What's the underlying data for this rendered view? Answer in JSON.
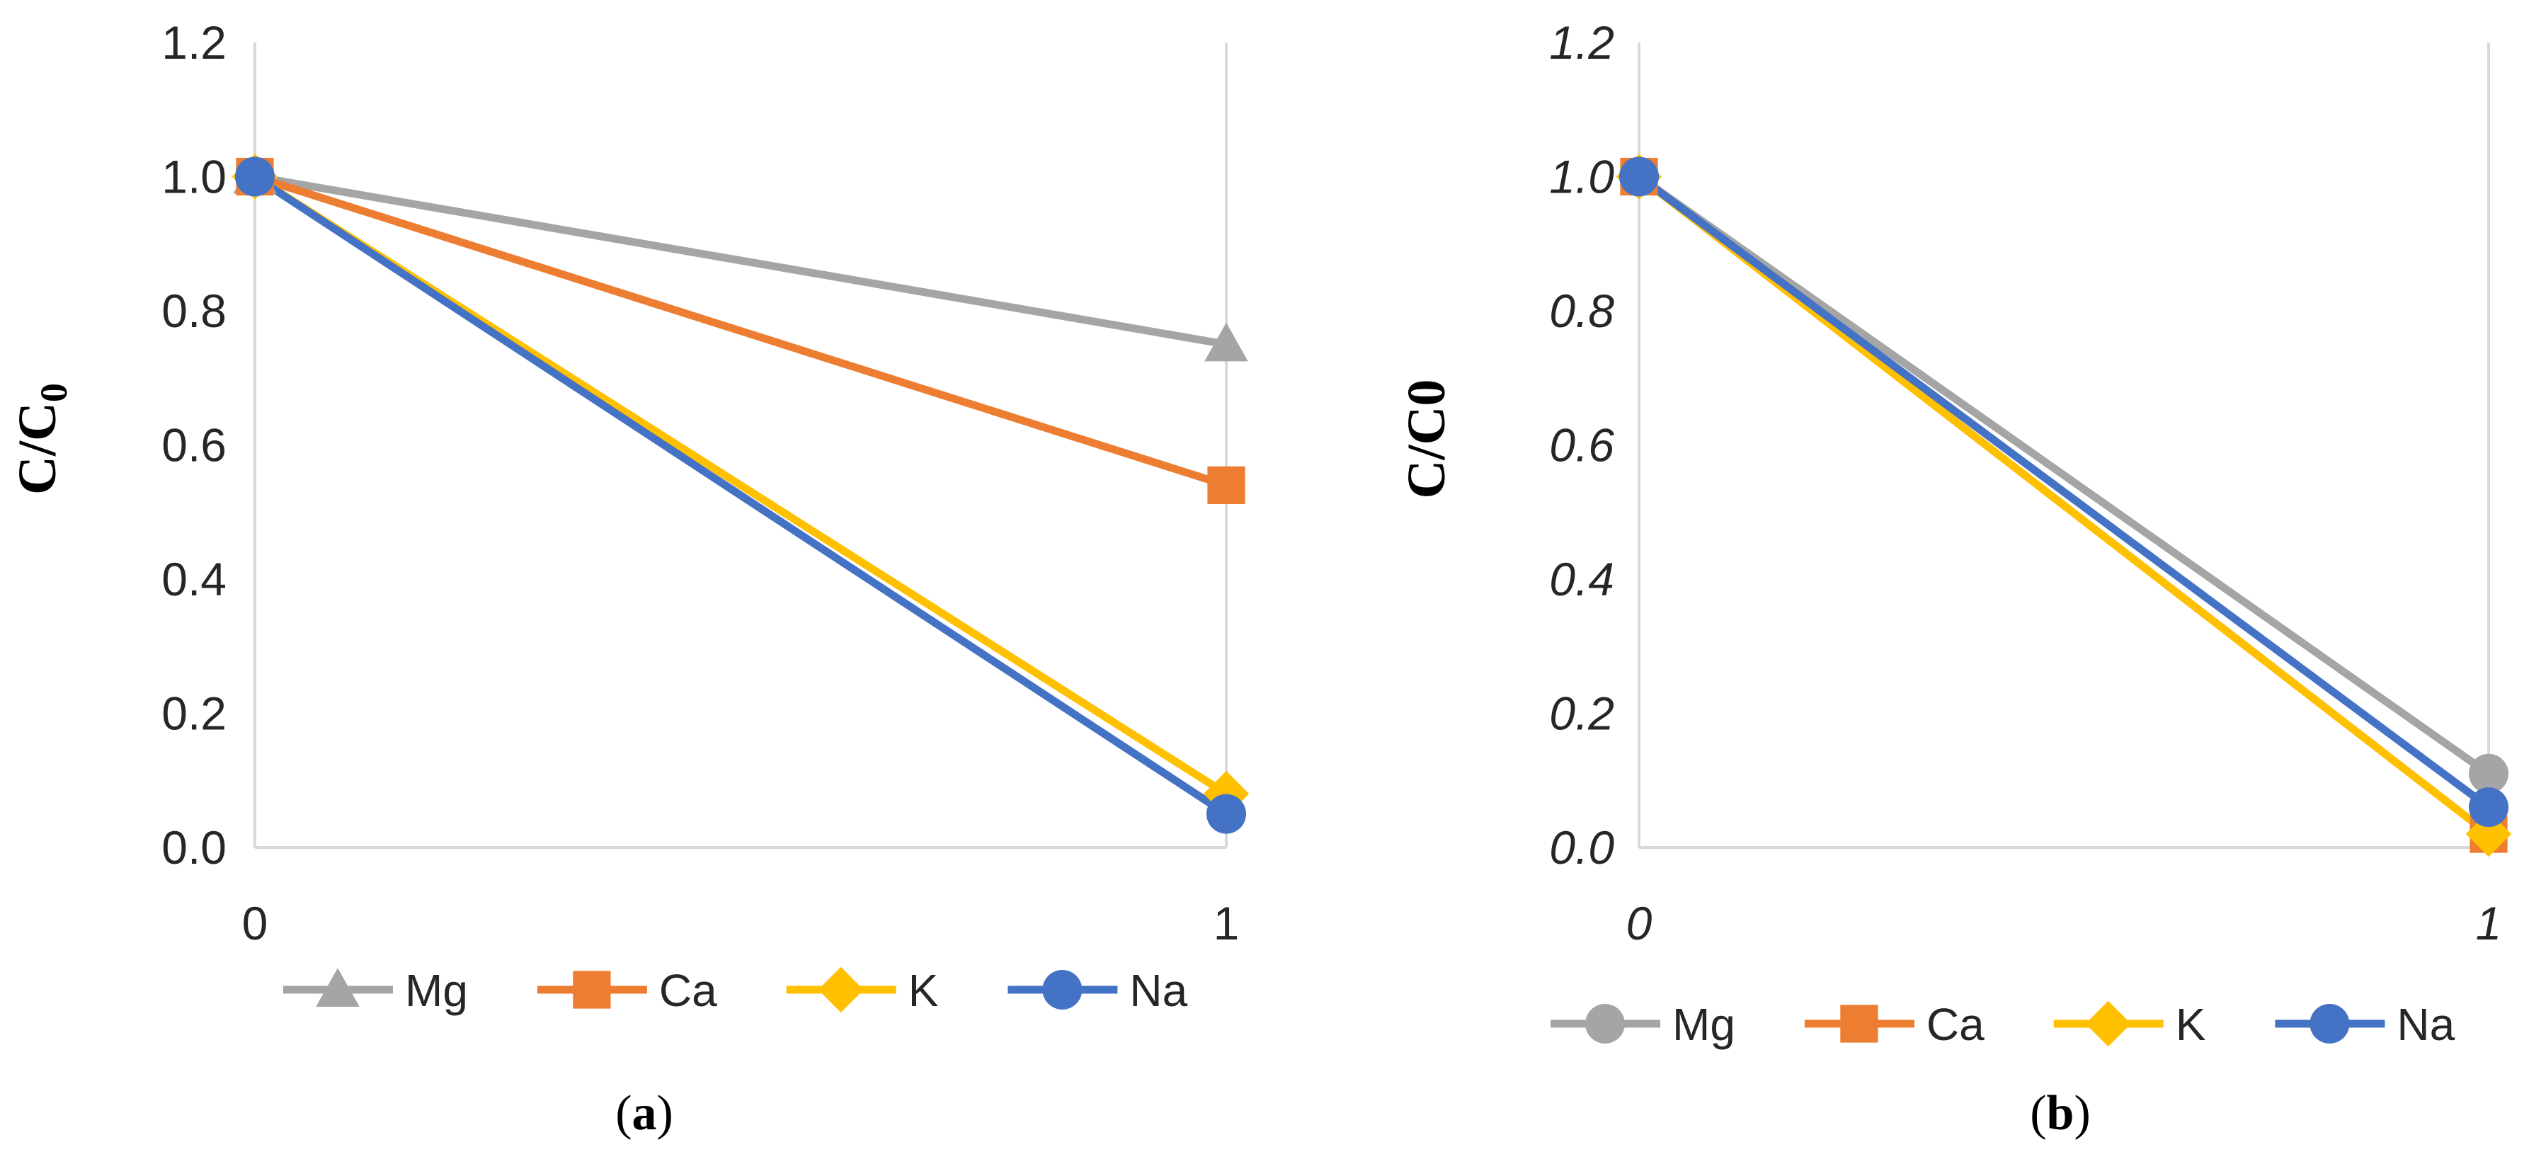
{
  "chart_data": [
    {
      "type": "line",
      "panel_id": "a",
      "caption_open": "(",
      "caption_letter": "a",
      "caption_close": ")",
      "ylabel_main": "C/C",
      "ylabel_sub": "0",
      "xlabel": "",
      "italic_ticks": false,
      "x": [
        0,
        1
      ],
      "x_tick_labels": [
        "0",
        "1"
      ],
      "ylim": [
        0,
        1.2
      ],
      "y_ticks": [
        "0.0",
        "0.2",
        "0.4",
        "0.6",
        "0.8",
        "1.0",
        "1.2"
      ],
      "grid": "vertical",
      "legend": "bottom",
      "series": [
        {
          "name": "Mg",
          "marker": "triangle",
          "color": "#A5A5A5",
          "values": [
            1.0,
            0.75
          ]
        },
        {
          "name": "Ca",
          "marker": "square",
          "color": "#ED7D31",
          "values": [
            1.0,
            0.54
          ]
        },
        {
          "name": "K",
          "marker": "diamond",
          "color": "#FFC000",
          "values": [
            1.0,
            0.08
          ]
        },
        {
          "name": "Na",
          "marker": "circle",
          "color": "#4472C4",
          "values": [
            1.0,
            0.05
          ]
        }
      ]
    },
    {
      "type": "line",
      "panel_id": "b",
      "caption_open": "(",
      "caption_letter": "b",
      "caption_close": ")",
      "ylabel_main": "C/C0",
      "ylabel_sub": "",
      "xlabel": "",
      "italic_ticks": true,
      "x": [
        0,
        1
      ],
      "x_tick_labels": [
        "0",
        "1"
      ],
      "ylim": [
        0,
        1.2
      ],
      "y_ticks": [
        "0.0",
        "0.2",
        "0.4",
        "0.6",
        "0.8",
        "1.0",
        "1.2"
      ],
      "grid": "vertical",
      "legend": "bottom",
      "series": [
        {
          "name": "Mg",
          "marker": "circle",
          "color": "#A5A5A5",
          "values": [
            1.0,
            0.11
          ]
        },
        {
          "name": "Ca",
          "marker": "square",
          "color": "#ED7D31",
          "values": [
            1.0,
            0.02
          ]
        },
        {
          "name": "K",
          "marker": "diamond",
          "color": "#FFC000",
          "values": [
            1.0,
            0.02
          ]
        },
        {
          "name": "Na",
          "marker": "circle",
          "color": "#4472C4",
          "values": [
            1.0,
            0.06
          ]
        }
      ]
    }
  ]
}
